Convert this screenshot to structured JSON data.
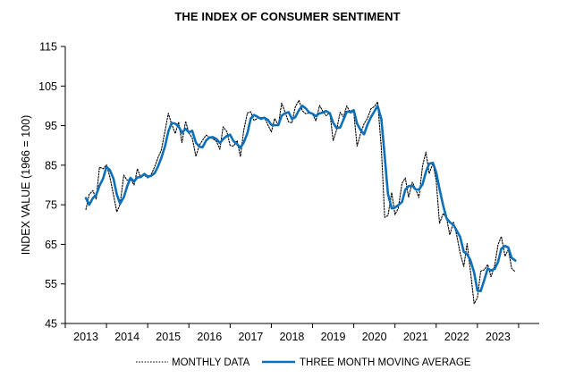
{
  "chart_data": {
    "type": "line",
    "title": "THE INDEX OF CONSUMER SENTIMENT",
    "xlabel": "",
    "ylabel": "INDEX VALUE (1966 = 100)",
    "xlim": [
      2012.5,
      2024.0
    ],
    "ylim": [
      45,
      115
    ],
    "yticks": [
      45,
      55,
      65,
      75,
      85,
      95,
      105,
      115
    ],
    "xticks": [
      2013,
      2014,
      2015,
      2016,
      2017,
      2018,
      2019,
      2020,
      2021,
      2022,
      2023
    ],
    "grid": false,
    "legend_position": "bottom",
    "series": [
      {
        "name": "MONTHLY DATA",
        "color": "#000000",
        "style": "dotted",
        "points": [
          [
            2013.0,
            73.8
          ],
          [
            2013.08,
            77.6
          ],
          [
            2013.17,
            78.6
          ],
          [
            2013.25,
            76.4
          ],
          [
            2013.33,
            84.5
          ],
          [
            2013.42,
            84.1
          ],
          [
            2013.5,
            85.1
          ],
          [
            2013.58,
            82.1
          ],
          [
            2013.67,
            77.5
          ],
          [
            2013.75,
            73.2
          ],
          [
            2013.83,
            75.1
          ],
          [
            2013.92,
            82.5
          ],
          [
            2014.0,
            81.2
          ],
          [
            2014.08,
            81.6
          ],
          [
            2014.17,
            80.0
          ],
          [
            2014.25,
            84.1
          ],
          [
            2014.33,
            81.9
          ],
          [
            2014.42,
            82.5
          ],
          [
            2014.5,
            81.8
          ],
          [
            2014.58,
            82.5
          ],
          [
            2014.67,
            84.6
          ],
          [
            2014.75,
            86.9
          ],
          [
            2014.83,
            88.8
          ],
          [
            2014.92,
            93.6
          ],
          [
            2015.0,
            98.1
          ],
          [
            2015.08,
            95.4
          ],
          [
            2015.17,
            93.0
          ],
          [
            2015.25,
            95.9
          ],
          [
            2015.33,
            90.7
          ],
          [
            2015.42,
            96.1
          ],
          [
            2015.5,
            93.1
          ],
          [
            2015.58,
            91.9
          ],
          [
            2015.67,
            87.2
          ],
          [
            2015.75,
            90.0
          ],
          [
            2015.83,
            91.3
          ],
          [
            2015.92,
            92.6
          ],
          [
            2016.0,
            92.0
          ],
          [
            2016.08,
            91.7
          ],
          [
            2016.17,
            91.0
          ],
          [
            2016.25,
            89.0
          ],
          [
            2016.33,
            94.7
          ],
          [
            2016.42,
            93.5
          ],
          [
            2016.5,
            90.0
          ],
          [
            2016.58,
            89.8
          ],
          [
            2016.67,
            91.2
          ],
          [
            2016.75,
            87.2
          ],
          [
            2016.83,
            93.8
          ],
          [
            2016.92,
            98.2
          ],
          [
            2017.0,
            98.5
          ],
          [
            2017.08,
            96.3
          ],
          [
            2017.17,
            96.9
          ],
          [
            2017.25,
            97.0
          ],
          [
            2017.33,
            97.1
          ],
          [
            2017.42,
            95.1
          ],
          [
            2017.5,
            93.4
          ],
          [
            2017.58,
            96.8
          ],
          [
            2017.67,
            95.1
          ],
          [
            2017.75,
            100.7
          ],
          [
            2017.83,
            98.5
          ],
          [
            2017.92,
            95.9
          ],
          [
            2018.0,
            95.7
          ],
          [
            2018.08,
            99.7
          ],
          [
            2018.17,
            101.4
          ],
          [
            2018.25,
            98.8
          ],
          [
            2018.33,
            98.0
          ],
          [
            2018.42,
            98.2
          ],
          [
            2018.5,
            97.9
          ],
          [
            2018.58,
            96.2
          ],
          [
            2018.67,
            100.1
          ],
          [
            2018.75,
            98.6
          ],
          [
            2018.83,
            97.5
          ],
          [
            2018.92,
            98.3
          ],
          [
            2019.0,
            91.2
          ],
          [
            2019.08,
            93.8
          ],
          [
            2019.17,
            98.4
          ],
          [
            2019.25,
            97.2
          ],
          [
            2019.33,
            100.0
          ],
          [
            2019.42,
            98.2
          ],
          [
            2019.5,
            98.4
          ],
          [
            2019.58,
            89.8
          ],
          [
            2019.67,
            93.2
          ],
          [
            2019.75,
            95.5
          ],
          [
            2019.83,
            96.8
          ],
          [
            2019.92,
            99.3
          ],
          [
            2020.0,
            99.8
          ],
          [
            2020.08,
            101.0
          ],
          [
            2020.17,
            89.1
          ],
          [
            2020.25,
            71.8
          ],
          [
            2020.33,
            72.3
          ],
          [
            2020.42,
            78.1
          ],
          [
            2020.5,
            72.5
          ],
          [
            2020.58,
            74.1
          ],
          [
            2020.67,
            80.4
          ],
          [
            2020.75,
            81.8
          ],
          [
            2020.83,
            76.9
          ],
          [
            2020.92,
            80.7
          ],
          [
            2021.0,
            79.0
          ],
          [
            2021.08,
            76.8
          ],
          [
            2021.17,
            84.9
          ],
          [
            2021.25,
            88.3
          ],
          [
            2021.33,
            82.9
          ],
          [
            2021.42,
            85.5
          ],
          [
            2021.5,
            81.2
          ],
          [
            2021.58,
            70.3
          ],
          [
            2021.67,
            72.8
          ],
          [
            2021.75,
            71.7
          ],
          [
            2021.83,
            67.4
          ],
          [
            2021.92,
            70.6
          ],
          [
            2022.0,
            67.2
          ],
          [
            2022.08,
            62.8
          ],
          [
            2022.17,
            59.4
          ],
          [
            2022.25,
            65.2
          ],
          [
            2022.33,
            58.4
          ],
          [
            2022.42,
            50.0
          ],
          [
            2022.5,
            51.5
          ],
          [
            2022.58,
            58.2
          ],
          [
            2022.67,
            58.6
          ],
          [
            2022.75,
            59.9
          ],
          [
            2022.83,
            56.8
          ],
          [
            2022.92,
            59.7
          ],
          [
            2023.0,
            64.9
          ],
          [
            2023.08,
            67.0
          ],
          [
            2023.17,
            62.0
          ],
          [
            2023.25,
            63.7
          ],
          [
            2023.33,
            59.0
          ],
          [
            2023.42,
            58.0
          ]
        ]
      },
      {
        "name": "THREE MONTH MOVING AVERAGE",
        "color": "#0b70b9",
        "style": "solid",
        "points": [
          [
            2013.0,
            76.7
          ],
          [
            2013.08,
            75.0
          ],
          [
            2013.17,
            76.7
          ],
          [
            2013.25,
            77.5
          ],
          [
            2013.33,
            79.8
          ],
          [
            2013.42,
            81.7
          ],
          [
            2013.5,
            84.6
          ],
          [
            2013.58,
            83.8
          ],
          [
            2013.67,
            81.6
          ],
          [
            2013.75,
            77.6
          ],
          [
            2013.83,
            75.3
          ],
          [
            2013.92,
            76.9
          ],
          [
            2014.0,
            79.6
          ],
          [
            2014.08,
            81.8
          ],
          [
            2014.17,
            80.9
          ],
          [
            2014.25,
            81.9
          ],
          [
            2014.33,
            82.0
          ],
          [
            2014.42,
            82.8
          ],
          [
            2014.5,
            82.1
          ],
          [
            2014.58,
            82.3
          ],
          [
            2014.67,
            83.0
          ],
          [
            2014.75,
            84.7
          ],
          [
            2014.83,
            86.8
          ],
          [
            2014.92,
            89.8
          ],
          [
            2015.0,
            93.5
          ],
          [
            2015.08,
            95.7
          ],
          [
            2015.17,
            95.5
          ],
          [
            2015.25,
            94.8
          ],
          [
            2015.33,
            93.2
          ],
          [
            2015.42,
            94.2
          ],
          [
            2015.5,
            93.3
          ],
          [
            2015.58,
            93.7
          ],
          [
            2015.67,
            90.7
          ],
          [
            2015.75,
            89.7
          ],
          [
            2015.83,
            89.5
          ],
          [
            2015.92,
            91.3
          ],
          [
            2016.0,
            92.0
          ],
          [
            2016.08,
            92.1
          ],
          [
            2016.17,
            91.6
          ],
          [
            2016.25,
            90.6
          ],
          [
            2016.33,
            91.6
          ],
          [
            2016.42,
            92.4
          ],
          [
            2016.5,
            92.7
          ],
          [
            2016.58,
            91.1
          ],
          [
            2016.67,
            90.3
          ],
          [
            2016.75,
            89.4
          ],
          [
            2016.83,
            90.7
          ],
          [
            2016.92,
            93.1
          ],
          [
            2017.0,
            96.8
          ],
          [
            2017.08,
            97.7
          ],
          [
            2017.17,
            97.2
          ],
          [
            2017.25,
            96.7
          ],
          [
            2017.33,
            97.0
          ],
          [
            2017.42,
            96.4
          ],
          [
            2017.5,
            95.2
          ],
          [
            2017.58,
            95.1
          ],
          [
            2017.67,
            95.1
          ],
          [
            2017.75,
            97.5
          ],
          [
            2017.83,
            98.1
          ],
          [
            2017.92,
            98.4
          ],
          [
            2018.0,
            96.7
          ],
          [
            2018.08,
            97.1
          ],
          [
            2018.17,
            98.9
          ],
          [
            2018.25,
            100.0
          ],
          [
            2018.33,
            99.4
          ],
          [
            2018.42,
            98.3
          ],
          [
            2018.5,
            98.0
          ],
          [
            2018.58,
            97.4
          ],
          [
            2018.67,
            98.1
          ],
          [
            2018.75,
            98.3
          ],
          [
            2018.83,
            98.7
          ],
          [
            2018.92,
            98.1
          ],
          [
            2019.0,
            95.7
          ],
          [
            2019.08,
            94.4
          ],
          [
            2019.17,
            94.5
          ],
          [
            2019.25,
            96.5
          ],
          [
            2019.33,
            98.5
          ],
          [
            2019.42,
            98.5
          ],
          [
            2019.5,
            98.9
          ],
          [
            2019.58,
            95.5
          ],
          [
            2019.67,
            93.8
          ],
          [
            2019.75,
            92.8
          ],
          [
            2019.83,
            95.2
          ],
          [
            2019.92,
            97.2
          ],
          [
            2020.0,
            98.6
          ],
          [
            2020.08,
            100.0
          ],
          [
            2020.17,
            96.6
          ],
          [
            2020.25,
            87.3
          ],
          [
            2020.33,
            77.7
          ],
          [
            2020.42,
            74.1
          ],
          [
            2020.5,
            74.3
          ],
          [
            2020.58,
            74.9
          ],
          [
            2020.67,
            75.7
          ],
          [
            2020.75,
            78.8
          ],
          [
            2020.83,
            79.7
          ],
          [
            2020.92,
            79.8
          ],
          [
            2021.0,
            78.9
          ],
          [
            2021.08,
            78.8
          ],
          [
            2021.17,
            80.2
          ],
          [
            2021.25,
            83.3
          ],
          [
            2021.33,
            85.4
          ],
          [
            2021.42,
            85.6
          ],
          [
            2021.5,
            83.2
          ],
          [
            2021.58,
            79.0
          ],
          [
            2021.67,
            74.8
          ],
          [
            2021.75,
            71.6
          ],
          [
            2021.83,
            70.6
          ],
          [
            2021.92,
            69.9
          ],
          [
            2022.0,
            68.4
          ],
          [
            2022.08,
            66.9
          ],
          [
            2022.17,
            63.1
          ],
          [
            2022.25,
            62.5
          ],
          [
            2022.33,
            61.0
          ],
          [
            2022.42,
            57.9
          ],
          [
            2022.5,
            53.3
          ],
          [
            2022.58,
            53.2
          ],
          [
            2022.67,
            56.1
          ],
          [
            2022.75,
            58.9
          ],
          [
            2022.83,
            58.4
          ],
          [
            2022.92,
            58.8
          ],
          [
            2023.0,
            60.5
          ],
          [
            2023.08,
            63.9
          ],
          [
            2023.17,
            64.6
          ],
          [
            2023.25,
            64.2
          ],
          [
            2023.33,
            61.6
          ],
          [
            2023.42,
            60.9
          ]
        ]
      }
    ],
    "legend": [
      {
        "label": "MONTHLY DATA",
        "style": "dotted",
        "color": "#000000"
      },
      {
        "label": "THREE MONTH MOVING AVERAGE",
        "style": "solid",
        "color": "#0b70b9"
      }
    ]
  }
}
